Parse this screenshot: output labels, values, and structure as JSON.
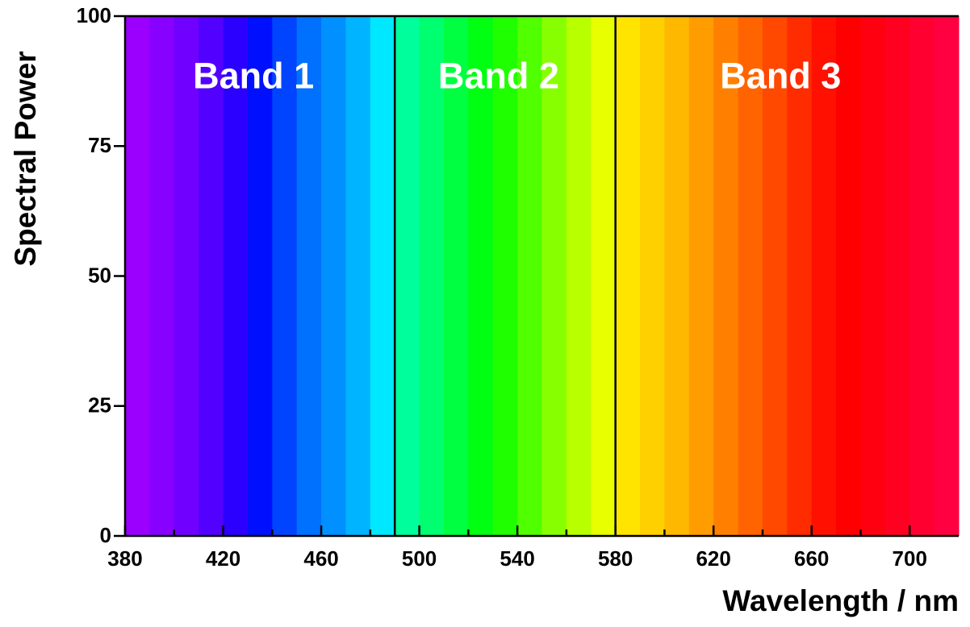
{
  "chart_data": {
    "type": "spectrum",
    "xlabel": "Wavelength / nm",
    "ylabel": "Spectral Power",
    "xlim": [
      380,
      720
    ],
    "ylim": [
      0,
      100
    ],
    "xticks": [
      380,
      420,
      460,
      500,
      540,
      580,
      620,
      660,
      700
    ],
    "xminorticks": [
      400,
      440,
      480,
      520,
      560,
      600,
      640,
      680
    ],
    "yticks": [
      0,
      25,
      50,
      75,
      100
    ],
    "bands": [
      {
        "label": "Band 1",
        "start": 380,
        "end": 490
      },
      {
        "label": "Band 2",
        "start": 490,
        "end": 580
      },
      {
        "label": "Band 3",
        "start": 580,
        "end": 720
      }
    ],
    "spectrum": [
      {
        "wavelength": 380,
        "color": "#9b00ff"
      },
      {
        "wavelength": 390,
        "color": "#8800ff"
      },
      {
        "wavelength": 400,
        "color": "#7000ff"
      },
      {
        "wavelength": 410,
        "color": "#5200ff"
      },
      {
        "wavelength": 420,
        "color": "#2c00ff"
      },
      {
        "wavelength": 430,
        "color": "#0010ff"
      },
      {
        "wavelength": 440,
        "color": "#0044ff"
      },
      {
        "wavelength": 450,
        "color": "#0070ff"
      },
      {
        "wavelength": 460,
        "color": "#0090ff"
      },
      {
        "wavelength": 470,
        "color": "#00b4ff"
      },
      {
        "wavelength": 480,
        "color": "#00e8ff"
      },
      {
        "wavelength": 490,
        "color": "#00ff9c"
      },
      {
        "wavelength": 500,
        "color": "#00ff70"
      },
      {
        "wavelength": 510,
        "color": "#00ff40"
      },
      {
        "wavelength": 520,
        "color": "#00ff10"
      },
      {
        "wavelength": 530,
        "color": "#20ff00"
      },
      {
        "wavelength": 540,
        "color": "#50ff00"
      },
      {
        "wavelength": 550,
        "color": "#88ff00"
      },
      {
        "wavelength": 560,
        "color": "#b8ff00"
      },
      {
        "wavelength": 570,
        "color": "#e8ff00"
      },
      {
        "wavelength": 580,
        "color": "#ffe400"
      },
      {
        "wavelength": 590,
        "color": "#ffd000"
      },
      {
        "wavelength": 600,
        "color": "#ffb800"
      },
      {
        "wavelength": 610,
        "color": "#ff9c00"
      },
      {
        "wavelength": 620,
        "color": "#ff8000"
      },
      {
        "wavelength": 630,
        "color": "#ff6400"
      },
      {
        "wavelength": 640,
        "color": "#ff4800"
      },
      {
        "wavelength": 650,
        "color": "#ff2c00"
      },
      {
        "wavelength": 660,
        "color": "#ff1000"
      },
      {
        "wavelength": 670,
        "color": "#ff0000"
      },
      {
        "wavelength": 680,
        "color": "#ff0010"
      },
      {
        "wavelength": 690,
        "color": "#ff0020"
      },
      {
        "wavelength": 700,
        "color": "#ff0030"
      },
      {
        "wavelength": 710,
        "color": "#ff0040"
      }
    ]
  }
}
